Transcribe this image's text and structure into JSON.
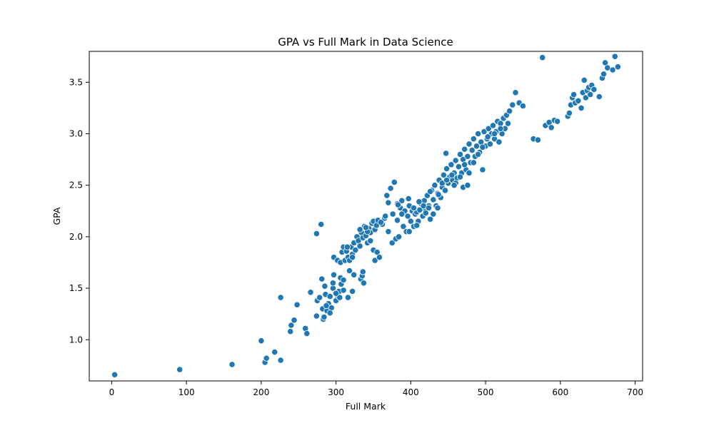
{
  "chart_data": {
    "type": "scatter",
    "title": "GPA vs Full Mark in Data Science",
    "xlabel": "Full Mark",
    "ylabel": "GPA",
    "xlim": [
      -30,
      710
    ],
    "ylim": [
      0.6,
      3.8
    ],
    "xticks": [
      0,
      100,
      200,
      300,
      400,
      500,
      600,
      700
    ],
    "yticks": [
      1.0,
      1.5,
      2.0,
      2.5,
      3.0,
      3.5
    ],
    "ytick_labels": [
      "1.0",
      "1.5",
      "2.0",
      "2.5",
      "3.0",
      "3.5"
    ],
    "grid": false,
    "marker_color": "#1f77b4",
    "points": [
      [
        4,
        0.66
      ],
      [
        91,
        0.71
      ],
      [
        161,
        0.76
      ],
      [
        200,
        0.99
      ],
      [
        205,
        0.78
      ],
      [
        207,
        0.82
      ],
      [
        218,
        0.88
      ],
      [
        226,
        0.8
      ],
      [
        226,
        1.41
      ],
      [
        239,
        1.08
      ],
      [
        240,
        1.14
      ],
      [
        244,
        1.19
      ],
      [
        248,
        1.34
      ],
      [
        259,
        1.11
      ],
      [
        261,
        1.06
      ],
      [
        266,
        1.46
      ],
      [
        274,
        1.23
      ],
      [
        275,
        1.38
      ],
      [
        278,
        1.41
      ],
      [
        281,
        1.59
      ],
      [
        282,
        1.3
      ],
      [
        283,
        1.2
      ],
      [
        284,
        1.22
      ],
      [
        285,
        1.52
      ],
      [
        286,
        1.44
      ],
      [
        288,
        1.28
      ],
      [
        290,
        1.35
      ],
      [
        292,
        1.42
      ],
      [
        294,
        1.31
      ],
      [
        296,
        1.5
      ],
      [
        297,
        1.63
      ],
      [
        299,
        1.45
      ],
      [
        300,
        1.38
      ],
      [
        302,
        1.43
      ],
      [
        304,
        1.47
      ],
      [
        305,
        1.41
      ],
      [
        306,
        1.6
      ],
      [
        307,
        1.54
      ],
      [
        310,
        1.48
      ],
      [
        316,
        1.41
      ],
      [
        318,
        1.67
      ],
      [
        322,
        1.47
      ],
      [
        324,
        1.63
      ],
      [
        333,
        1.59
      ],
      [
        335,
        1.62
      ],
      [
        336,
        1.66
      ],
      [
        337,
        1.55
      ],
      [
        274,
        2.03
      ],
      [
        280,
        2.12
      ],
      [
        297,
        1.8
      ],
      [
        302,
        1.77
      ],
      [
        306,
        1.75
      ],
      [
        308,
        1.85
      ],
      [
        310,
        1.9
      ],
      [
        312,
        1.77
      ],
      [
        314,
        1.86
      ],
      [
        316,
        1.8
      ],
      [
        318,
        1.77
      ],
      [
        320,
        1.9
      ],
      [
        322,
        1.83
      ],
      [
        324,
        1.94
      ],
      [
        326,
        1.87
      ],
      [
        328,
        2.0
      ],
      [
        330,
        1.96
      ],
      [
        332,
        1.91
      ],
      [
        334,
        2.04
      ],
      [
        336,
        1.99
      ],
      [
        338,
        2.1
      ],
      [
        340,
        2.01
      ],
      [
        342,
        1.94
      ],
      [
        344,
        2.08
      ],
      [
        346,
        2.04
      ],
      [
        348,
        2.13
      ],
      [
        350,
        2.15
      ],
      [
        352,
        2.07
      ],
      [
        354,
        2.11
      ],
      [
        356,
        2.16
      ],
      [
        342,
        2.05
      ],
      [
        346,
        1.96
      ],
      [
        350,
        1.87
      ],
      [
        352,
        1.77
      ],
      [
        355,
        1.85
      ],
      [
        358,
        1.8
      ],
      [
        365,
        2.18
      ],
      [
        368,
        2.4
      ],
      [
        370,
        2.05
      ],
      [
        373,
        2.47
      ],
      [
        375,
        1.94
      ],
      [
        378,
        2.53
      ],
      [
        380,
        1.98
      ],
      [
        382,
        2.32
      ],
      [
        384,
        2.0
      ],
      [
        386,
        2.28
      ],
      [
        388,
        2.35
      ],
      [
        390,
        2.1
      ],
      [
        392,
        2.25
      ],
      [
        394,
        2.05
      ],
      [
        396,
        2.2
      ],
      [
        398,
        2.3
      ],
      [
        400,
        2.15
      ],
      [
        402,
        2.25
      ],
      [
        404,
        2.1
      ],
      [
        406,
        2.22
      ],
      [
        408,
        2.24
      ],
      [
        410,
        2.15
      ],
      [
        412,
        2.26
      ],
      [
        414,
        2.32
      ],
      [
        416,
        2.2
      ],
      [
        418,
        2.35
      ],
      [
        420,
        2.25
      ],
      [
        422,
        2.4
      ],
      [
        424,
        2.3
      ],
      [
        426,
        2.17
      ],
      [
        428,
        2.45
      ],
      [
        430,
        2.22
      ],
      [
        432,
        2.5
      ],
      [
        434,
        2.3
      ],
      [
        436,
        2.42
      ],
      [
        438,
        2.55
      ],
      [
        440,
        2.38
      ],
      [
        442,
        2.48
      ],
      [
        444,
        2.6
      ],
      [
        446,
        2.45
      ],
      [
        448,
        2.66
      ],
      [
        450,
        2.52
      ],
      [
        452,
        2.58
      ],
      [
        454,
        2.7
      ],
      [
        456,
        2.55
      ],
      [
        458,
        2.62
      ],
      [
        460,
        2.74
      ],
      [
        462,
        2.57
      ],
      [
        464,
        2.68
      ],
      [
        466,
        2.8
      ],
      [
        468,
        2.62
      ],
      [
        470,
        2.75
      ],
      [
        472,
        2.85
      ],
      [
        474,
        2.65
      ],
      [
        476,
        2.78
      ],
      [
        478,
        2.9
      ],
      [
        480,
        2.72
      ],
      [
        482,
        2.84
      ],
      [
        484,
        2.95
      ],
      [
        486,
        2.78
      ],
      [
        488,
        2.88
      ],
      [
        490,
        3.0
      ],
      [
        492,
        2.82
      ],
      [
        494,
        2.92
      ],
      [
        496,
        2.65
      ],
      [
        498,
        3.02
      ],
      [
        500,
        2.88
      ],
      [
        502,
        2.95
      ],
      [
        504,
        3.05
      ],
      [
        506,
        2.9
      ],
      [
        508,
        3.0
      ],
      [
        510,
        3.08
      ],
      [
        512,
        2.95
      ],
      [
        514,
        3.02
      ],
      [
        516,
        3.12
      ],
      [
        518,
        2.92
      ],
      [
        520,
        3.1
      ],
      [
        522,
        3.0
      ],
      [
        524,
        3.15
      ],
      [
        526,
        3.05
      ],
      [
        528,
        3.18
      ],
      [
        530,
        3.1
      ],
      [
        532,
        3.22
      ],
      [
        536,
        3.28
      ],
      [
        540,
        3.4
      ],
      [
        545,
        3.3
      ],
      [
        550,
        3.27
      ],
      [
        564,
        2.95
      ],
      [
        570,
        2.94
      ],
      [
        576,
        3.74
      ],
      [
        580,
        3.08
      ],
      [
        585,
        3.11
      ],
      [
        588,
        3.06
      ],
      [
        592,
        3.13
      ],
      [
        596,
        3.12
      ],
      [
        610,
        3.17
      ],
      [
        612,
        3.2
      ],
      [
        614,
        3.28
      ],
      [
        616,
        3.35
      ],
      [
        618,
        3.38
      ],
      [
        620,
        3.3
      ],
      [
        624,
        3.32
      ],
      [
        628,
        3.25
      ],
      [
        630,
        3.4
      ],
      [
        632,
        3.52
      ],
      [
        634,
        3.35
      ],
      [
        636,
        3.42
      ],
      [
        638,
        3.45
      ],
      [
        640,
        3.38
      ],
      [
        642,
        3.47
      ],
      [
        645,
        3.43
      ],
      [
        652,
        3.36
      ],
      [
        656,
        3.54
      ],
      [
        658,
        3.58
      ],
      [
        660,
        3.69
      ],
      [
        663,
        3.64
      ],
      [
        670,
        3.62
      ],
      [
        673,
        3.75
      ],
      [
        677,
        3.65
      ],
      [
        362,
        2.12
      ],
      [
        366,
        2.2
      ],
      [
        370,
        2.33
      ],
      [
        376,
        2.22
      ],
      [
        383,
        2.31
      ],
      [
        388,
        2.22
      ],
      [
        397,
        2.37
      ],
      [
        404,
        2.28
      ],
      [
        411,
        2.34
      ],
      [
        417,
        2.3
      ],
      [
        424,
        2.28
      ],
      [
        430,
        2.36
      ],
      [
        437,
        2.41
      ],
      [
        442,
        2.52
      ],
      [
        448,
        2.55
      ],
      [
        455,
        2.6
      ],
      [
        460,
        2.52
      ],
      [
        466,
        2.58
      ],
      [
        472,
        2.7
      ],
      [
        478,
        2.62
      ],
      [
        484,
        2.72
      ],
      [
        490,
        2.8
      ],
      [
        496,
        2.87
      ],
      [
        503,
        2.97
      ],
      [
        512,
        3.0
      ],
      [
        520,
        3.05
      ],
      [
        447,
        2.81
      ],
      [
        470,
        2.48
      ],
      [
        476,
        2.5
      ],
      [
        458,
        2.5
      ],
      [
        436,
        2.28
      ],
      [
        420,
        2.23
      ],
      [
        426,
        2.44
      ],
      [
        408,
        2.11
      ],
      [
        398,
        2.05
      ],
      [
        382,
        2.16
      ],
      [
        360,
        2.14
      ],
      [
        322,
        1.8
      ],
      [
        315,
        1.9
      ],
      [
        340,
        2.09
      ],
      [
        332,
        2.07
      ],
      [
        296,
        1.55
      ],
      [
        310,
        1.58
      ],
      [
        292,
        1.26
      ],
      [
        287,
        1.33
      ],
      [
        300,
        1.45
      ]
    ]
  }
}
